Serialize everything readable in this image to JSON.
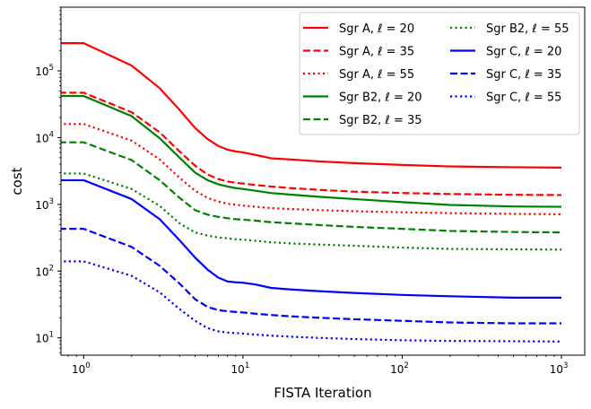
{
  "chart_data": {
    "type": "line",
    "xlabel": "FISTA Iteration",
    "ylabel": "cost",
    "xscale": "log",
    "yscale": "log",
    "xlim": [
      0.72,
      1400
    ],
    "ylim": [
      5.5,
      900000
    ],
    "xticks": [
      {
        "value": 1,
        "base": "10",
        "exp": "0"
      },
      {
        "value": 10,
        "base": "10",
        "exp": "1"
      },
      {
        "value": 100,
        "base": "10",
        "exp": "2"
      },
      {
        "value": 1000,
        "base": "10",
        "exp": "3"
      }
    ],
    "yticks": [
      {
        "value": 10,
        "base": "10",
        "exp": "1"
      },
      {
        "value": 100,
        "base": "10",
        "exp": "2"
      },
      {
        "value": 1000,
        "base": "10",
        "exp": "3"
      },
      {
        "value": 10000,
        "base": "10",
        "exp": "4"
      },
      {
        "value": 100000,
        "base": "10",
        "exp": "5"
      }
    ],
    "legend_position": "top-right",
    "legend_columns": 2,
    "x": [
      0.7,
      1,
      2,
      3,
      4,
      5,
      6,
      7,
      8,
      9,
      10,
      12,
      15,
      20,
      30,
      50,
      100,
      200,
      500,
      1000
    ],
    "series": [
      {
        "name": "Sgr A, ℓ = 20",
        "color": "#ff0000",
        "dash": "solid",
        "values": [
          260000,
          260000,
          120000,
          55000,
          26000,
          14000,
          9500,
          7500,
          6600,
          6200,
          6000,
          5500,
          4900,
          4700,
          4400,
          4150,
          3900,
          3700,
          3600,
          3550
        ]
      },
      {
        "name": "Sgr A, ℓ = 35",
        "color": "#ff0000",
        "dash": "dashed",
        "values": [
          47000,
          47000,
          24000,
          12000,
          6200,
          3800,
          2800,
          2400,
          2200,
          2100,
          2050,
          1950,
          1850,
          1750,
          1650,
          1550,
          1480,
          1430,
          1390,
          1380
        ]
      },
      {
        "name": "Sgr A, ℓ = 55",
        "color": "#ff0000",
        "dash": "dotted",
        "values": [
          16000,
          16000,
          9000,
          4700,
          2500,
          1600,
          1250,
          1100,
          1020,
          990,
          960,
          920,
          880,
          850,
          820,
          790,
          760,
          740,
          720,
          710
        ]
      },
      {
        "name": "Sgr B2, ℓ = 20",
        "color": "#008000",
        "dash": "solid",
        "values": [
          42000,
          42000,
          21000,
          9800,
          5000,
          3000,
          2300,
          2000,
          1850,
          1750,
          1700,
          1600,
          1480,
          1400,
          1300,
          1200,
          1080,
          980,
          930,
          920
        ]
      },
      {
        "name": "Sgr B2, ℓ = 35",
        "color": "#008000",
        "dash": "dashed",
        "values": [
          8500,
          8500,
          4600,
          2300,
          1250,
          820,
          700,
          650,
          620,
          600,
          590,
          570,
          540,
          520,
          490,
          460,
          430,
          400,
          385,
          380
        ]
      },
      {
        "name": "Sgr B2, ℓ = 55",
        "color": "#008000",
        "dash": "dotted",
        "values": [
          2900,
          2900,
          1700,
          950,
          520,
          380,
          340,
          320,
          310,
          300,
          295,
          285,
          270,
          260,
          250,
          240,
          225,
          215,
          212,
          210
        ]
      },
      {
        "name": "Sgr C, ℓ = 20",
        "color": "#0000ff",
        "dash": "solid",
        "values": [
          2300,
          2300,
          1200,
          600,
          290,
          160,
          105,
          80,
          70,
          68,
          67,
          63,
          56,
          53,
          50,
          47,
          44,
          42,
          40,
          40
        ]
      },
      {
        "name": "Sgr C, ℓ = 35",
        "color": "#0000ff",
        "dash": "dashed",
        "values": [
          430,
          430,
          230,
          120,
          65,
          38,
          29,
          26,
          25,
          24.5,
          24,
          23,
          22,
          21,
          20,
          19,
          18,
          17,
          16.5,
          16.5
        ]
      },
      {
        "name": "Sgr C, ℓ = 55",
        "color": "#0000ff",
        "dash": "dotted",
        "values": [
          140,
          140,
          85,
          48,
          27,
          18,
          14,
          12.5,
          12,
          11.8,
          11.6,
          11.2,
          10.8,
          10.4,
          10,
          9.6,
          9.2,
          9,
          8.9,
          8.8
        ]
      }
    ]
  }
}
